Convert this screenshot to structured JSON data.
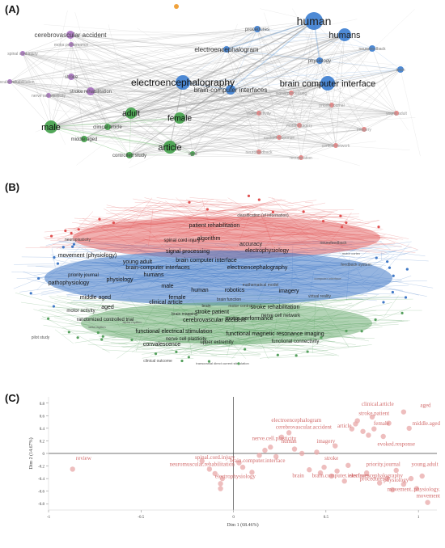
{
  "panels": [
    {
      "label": "(A)"
    },
    {
      "label": "(B)"
    },
    {
      "label": "(C)"
    }
  ],
  "colors": {
    "purple": "#a66fbf",
    "blue": "#3b7dd0",
    "green": "#3f9e47",
    "pink": "#e47f7f",
    "orange": "#f0a23c",
    "red_b": "#e05050",
    "blue_b": "#3f78c6",
    "green_b": "#56a05e",
    "scatter_text": "#d26c6c",
    "scatter_point": "#e8a8a8"
  },
  "networkA": {
    "labels": [
      "cerebrovascular accident",
      "stroke rehabilitation",
      "stroke",
      "neurovascular rehabilitation",
      "spinal cord injury",
      "motor performance",
      "nerve cell plasticity",
      "electroencephalogram",
      "procedures",
      "human",
      "humans",
      "electroencephalography",
      "brain-computer interfaces",
      "brain computer interface",
      "physiology",
      "neurofeedback",
      "brain",
      "male",
      "adult",
      "female",
      "article",
      "clinical article",
      "middle aged",
      "controlled study",
      "aged",
      "signal processing",
      "motor activity",
      "priority journal",
      "imagery",
      "motor imagery",
      "young adult",
      "evoked response",
      "cortical network",
      "recuperation",
      "neurofeedback"
    ]
  },
  "networkB": {
    "labels": [
      "classification (of information)",
      "patient rehabilitation",
      "spinal cord injury",
      "algorithm",
      "accuracy",
      "electrophysiology",
      "signal processing",
      "movement (physiology)",
      "young adult",
      "brain computer interface",
      "brain-computer interfaces",
      "electroencephalography",
      "pathophysiology",
      "priority journal",
      "physiology",
      "humans",
      "male",
      "human",
      "robotics",
      "imagery",
      "middle aged",
      "female",
      "aged",
      "clinical article",
      "stroke patient",
      "cerebrovascular accident",
      "stroke rehabilitation",
      "motor performance",
      "brain mapping",
      "brain function",
      "nerve cell network",
      "virtual reality",
      "randomized controlled trial",
      "functional electrical stimulation",
      "functional magnetic resonance imaging",
      "nerve cell plasticity",
      "convalescence",
      "upper extremity",
      "functional connectivity",
      "motor activity",
      "mathematical model",
      "motor control",
      "pilot study",
      "clinical outcome",
      "transcranial direct current stimulation",
      "feedback system",
      "neurofeedback",
      "computer interface",
      "motor cortex",
      "beta rhythm",
      "alpha rhythm",
      "brain",
      "neuroplasticity"
    ]
  },
  "chart_data": {
    "type": "scatter",
    "xlabel": "Dim 1 (68.46%)",
    "ylabel": "Dim 2 (14.67%)",
    "xlim": [
      -1,
      1.1
    ],
    "ylim": [
      -0.9,
      0.9
    ],
    "xticks": [
      -1,
      -0.5,
      0,
      0.5,
      1
    ],
    "yticks": [
      0.8,
      0.6,
      0.4,
      0.2,
      0,
      -0.2,
      -0.4,
      -0.6,
      -0.8
    ],
    "xtick_labels": [
      "-1",
      "-0.5",
      "0",
      "0.5",
      "1"
    ],
    "ytick_labels": [
      "0.8",
      "0.6",
      "0.4",
      "0.2",
      "0",
      "-0.2",
      "-0.4",
      "-0.6",
      "-0.8"
    ],
    "labels": [
      {
        "text": "clinical.article",
        "x": 0.78,
        "y": 0.76
      },
      {
        "text": "aged",
        "x": 0.98,
        "y": 0.74
      },
      {
        "text": "stroke.patient",
        "x": 0.76,
        "y": 0.61
      },
      {
        "text": "electroencephalogram",
        "x": 0.34,
        "y": 0.5
      },
      {
        "text": "female",
        "x": 0.8,
        "y": 0.45
      },
      {
        "text": "middle.aged",
        "x": 1.03,
        "y": 0.45
      },
      {
        "text": "cerebrovascular.accident",
        "x": 0.38,
        "y": 0.39
      },
      {
        "text": "article",
        "x": 0.6,
        "y": 0.41
      },
      {
        "text": "nerve.cell.plasticity",
        "x": 0.22,
        "y": 0.21
      },
      {
        "text": "human",
        "x": 0.3,
        "y": 0.17
      },
      {
        "text": "imagery",
        "x": 0.5,
        "y": 0.17
      },
      {
        "text": "evoked.response",
        "x": 0.88,
        "y": 0.12
      },
      {
        "text": "review",
        "x": -0.81,
        "y": -0.1
      },
      {
        "text": "spinal.cord.injury",
        "x": -0.1,
        "y": -0.09
      },
      {
        "text": "stroke",
        "x": 0.53,
        "y": -0.1
      },
      {
        "text": "neuromuscular.rehabilitation",
        "x": -0.17,
        "y": -0.2
      },
      {
        "text": "brain.computer.interface",
        "x": 0.13,
        "y": -0.14
      },
      {
        "text": "priority.journal",
        "x": 0.81,
        "y": -0.2
      },
      {
        "text": "young.adult",
        "x": 1.02,
        "y": -0.2
      },
      {
        "text": "procedures",
        "x": 0.75,
        "y": -0.43
      },
      {
        "text": "physiology",
        "x": 0.88,
        "y": -0.45
      },
      {
        "text": "brain",
        "x": 0.35,
        "y": -0.38
      },
      {
        "text": "brain.computer.interfaces",
        "x": 0.58,
        "y": -0.38
      },
      {
        "text": "electroencephalography",
        "x": 0.77,
        "y": -0.38
      },
      {
        "text": "electrophysiology",
        "x": 0.01,
        "y": -0.39
      },
      {
        "text": "movement..physiology.",
        "x": 1.03,
        "y": -0.6
      },
      {
        "text": "movement",
        "x": 1.05,
        "y": -0.7
      }
    ],
    "points": [
      {
        "x": -0.87,
        "y": -0.25
      },
      {
        "x": -0.17,
        "y": -0.12
      },
      {
        "x": -0.13,
        "y": -0.25
      },
      {
        "x": -0.1,
        "y": -0.32
      },
      {
        "x": -0.06,
        "y": -0.4
      },
      {
        "x": -0.07,
        "y": -0.48
      },
      {
        "x": -0.07,
        "y": -0.56
      },
      {
        "x": 0.03,
        "y": -0.15
      },
      {
        "x": 0.05,
        "y": -0.22
      },
      {
        "x": 0.14,
        "y": -0.03
      },
      {
        "x": 0.17,
        "y": 0.05
      },
      {
        "x": 0.2,
        "y": 0.1
      },
      {
        "x": 0.23,
        "y": -0.05
      },
      {
        "x": 0.26,
        "y": 0.26
      },
      {
        "x": 0.3,
        "y": 0.33
      },
      {
        "x": 0.33,
        "y": 0.07
      },
      {
        "x": 0.37,
        "y": 0.0
      },
      {
        "x": 0.41,
        "y": -0.26
      },
      {
        "x": 0.47,
        "y": -0.31
      },
      {
        "x": 0.49,
        "y": -0.22
      },
      {
        "x": 0.53,
        "y": -0.36
      },
      {
        "x": 0.56,
        "y": -0.28
      },
      {
        "x": 0.6,
        "y": -0.44
      },
      {
        "x": 0.62,
        "y": -0.19
      },
      {
        "x": 0.64,
        "y": 0.39
      },
      {
        "x": 0.67,
        "y": 0.52
      },
      {
        "x": 0.7,
        "y": 0.35
      },
      {
        "x": 0.73,
        "y": 0.29
      },
      {
        "x": 0.76,
        "y": 0.39
      },
      {
        "x": 0.75,
        "y": 0.58
      },
      {
        "x": 0.81,
        "y": 0.27
      },
      {
        "x": 0.83,
        "y": -0.4
      },
      {
        "x": 0.86,
        "y": -0.58
      },
      {
        "x": 0.88,
        "y": -0.27
      },
      {
        "x": 0.92,
        "y": -0.49
      },
      {
        "x": 0.96,
        "y": -0.4
      },
      {
        "x": 0.99,
        "y": -0.56
      },
      {
        "x": 1.02,
        "y": -0.36
      },
      {
        "x": 1.05,
        "y": -0.78
      },
      {
        "x": 0.92,
        "y": 0.66
      },
      {
        "x": 0.95,
        "y": 0.4
      },
      {
        "x": 0.84,
        "y": 0.48
      },
      {
        "x": 0.55,
        "y": 0.12
      },
      {
        "x": 0.45,
        "y": 0.02
      },
      {
        "x": 0.72,
        "y": -0.31
      },
      {
        "x": 0.79,
        "y": -0.47
      },
      {
        "x": 0.66,
        "y": 0.47
      },
      {
        "x": 0.1,
        "y": -0.3
      }
    ]
  }
}
